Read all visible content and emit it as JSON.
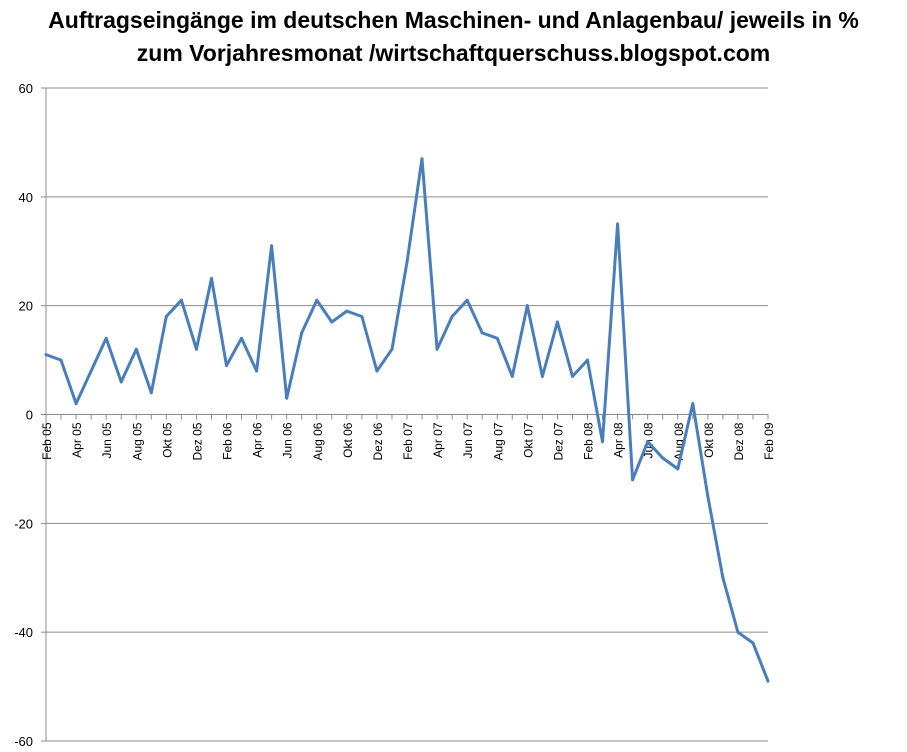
{
  "title": {
    "line1": "Auftragseingänge im deutschen Maschinen- und Anlagenbau/ jeweils in %",
    "line2": "zum Vorjahresmonat /wirtschaftquerschuss.blogspot.com"
  },
  "colors": {
    "line": "#4a7ebb",
    "grid": "#8c8c8c"
  },
  "chart_data": {
    "type": "line",
    "title": "Auftragseingänge im deutschen Maschinen- und Anlagenbau/ jeweils in % zum Vorjahresmonat /wirtschaftquerschuss.blogspot.com",
    "xlabel": "",
    "ylabel": "",
    "ylim": [
      -60,
      60
    ],
    "yticks": [
      -60,
      -40,
      -20,
      0,
      20,
      40,
      60
    ],
    "grid": true,
    "legend": "none",
    "x_tick_labels": [
      "Feb 05",
      "Apr 05",
      "Jun 05",
      "Aug 05",
      "Okt 05",
      "Dez 05",
      "Feb 06",
      "Apr 06",
      "Jun 06",
      "Aug 06",
      "Okt 06",
      "Dez 06",
      "Feb 07",
      "Apr 07",
      "Jun 07",
      "Aug 07",
      "Okt 07",
      "Dez 07",
      "Feb 08",
      "Apr 08",
      "Jun 08",
      "Aug 08",
      "Okt 08",
      "Dez 08",
      "Feb 09"
    ],
    "series": [
      {
        "name": "Auftragseingänge",
        "values": [
          11,
          10,
          2,
          8,
          14,
          6,
          12,
          4,
          18,
          21,
          12,
          25,
          9,
          14,
          8,
          31,
          3,
          15,
          21,
          17,
          19,
          18,
          8,
          12,
          28,
          47,
          12,
          18,
          21,
          15,
          14,
          7,
          20,
          7,
          17,
          7,
          10,
          -5,
          35,
          -12,
          -5,
          -8,
          -10,
          2,
          -15,
          -30,
          -40,
          -42,
          -49
        ]
      }
    ]
  }
}
